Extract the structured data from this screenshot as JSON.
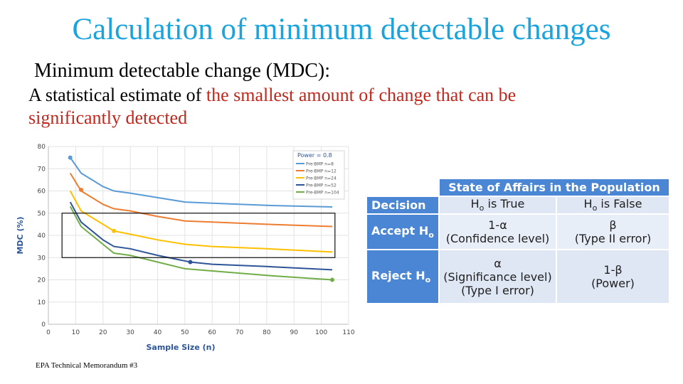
{
  "slide": {
    "title": "Calculation of minimum detectable changes",
    "subtitle": "Minimum detectable change (MDC):",
    "desc_plain": "A statistical estimate of ",
    "desc_highlight": "the smallest amount of change that can be significantly detected",
    "source": "EPA Technical Memorandum #3",
    "highlight_color": "#c0271d",
    "title_color": "#1aa3dc"
  },
  "chart_data": {
    "type": "line",
    "xlabel": "Sample Size (n)",
    "ylabel": "MDC (%)",
    "xlim": [
      0,
      110
    ],
    "ylim": [
      0,
      80
    ],
    "xticks": [
      0,
      10,
      20,
      30,
      40,
      50,
      60,
      70,
      80,
      90,
      100,
      110
    ],
    "yticks": [
      0,
      10,
      20,
      30,
      40,
      50,
      60,
      70,
      80
    ],
    "grid": true,
    "legend_title": "Power = 0.8",
    "legend_position": "top-right",
    "highlight_region": {
      "x": [
        5,
        105
      ],
      "y": [
        30,
        50
      ]
    },
    "series": [
      {
        "name": "Pre-BMP n=8",
        "color": "#5a9bd5",
        "x": [
          8,
          12,
          16,
          20,
          24,
          30,
          40,
          50,
          60,
          80,
          104
        ],
        "y": [
          75,
          68,
          65,
          62,
          60,
          59,
          57,
          55,
          54.5,
          53.5,
          52.8
        ],
        "marker": {
          "x": 8,
          "y": 75
        }
      },
      {
        "name": "Pre-BMP n=12",
        "color": "#ed7d31",
        "x": [
          8,
          12,
          16,
          20,
          24,
          30,
          40,
          50,
          60,
          80,
          104
        ],
        "y": [
          68,
          60,
          57,
          54,
          52,
          51,
          48.5,
          46.5,
          46,
          45,
          44
        ],
        "marker": {
          "x": 12,
          "y": 60.5
        }
      },
      {
        "name": "Pre-BMP n=24",
        "color": "#ffc000",
        "x": [
          8,
          12,
          16,
          20,
          24,
          30,
          40,
          50,
          60,
          80,
          104
        ],
        "y": [
          60,
          51,
          48,
          45,
          42,
          40.5,
          38,
          36,
          35,
          34,
          32.5
        ],
        "marker": {
          "x": 24,
          "y": 42
        }
      },
      {
        "name": "Pre-BMP n=52",
        "color": "#2e5597",
        "x": [
          8,
          12,
          16,
          20,
          24,
          30,
          40,
          52,
          60,
          80,
          104
        ],
        "y": [
          55,
          46,
          42,
          38,
          35,
          34,
          31,
          28,
          27,
          26,
          24.5
        ],
        "marker": {
          "x": 52,
          "y": 28
        }
      },
      {
        "name": "Pre-BMP n=104",
        "color": "#70ad47",
        "x": [
          8,
          12,
          16,
          20,
          24,
          30,
          40,
          50,
          60,
          80,
          104
        ],
        "y": [
          53,
          44,
          40,
          36,
          32,
          31,
          28,
          25,
          24,
          22,
          20
        ],
        "marker": {
          "x": 104,
          "y": 20
        }
      }
    ]
  },
  "table": {
    "header": "State of Affairs in the Population",
    "decision_label": "Decision",
    "h0_true_prefix": "H",
    "h0_sub": "o",
    "h0_true_suffix": " is True",
    "h0_false_suffix": " is False",
    "accept_prefix": "Accept H",
    "reject_prefix": "Reject H",
    "accept_true_1": "1-α",
    "accept_true_2": "(Confidence level)",
    "accept_false_1": "β",
    "accept_false_2": "(Type II error)",
    "reject_true_1": "α",
    "reject_true_2": "(Significance level)",
    "reject_true_3": "(Type I error)",
    "reject_false_1": "1-β",
    "reject_false_2": "(Power)"
  }
}
